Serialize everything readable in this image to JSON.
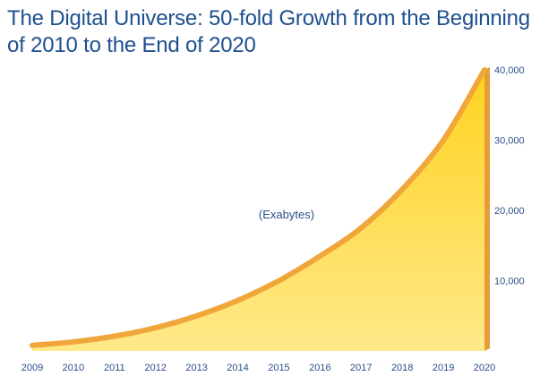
{
  "chart_data": {
    "type": "area",
    "title": "The Digital Universe: 50-fold Growth from the Beginning of 2010 to the End of 2020",
    "xlabel": "",
    "ylabel": "",
    "annotation": "(Exabytes)",
    "categories": [
      "2009",
      "2010",
      "2011",
      "2012",
      "2013",
      "2014",
      "2015",
      "2016",
      "2017",
      "2018",
      "2019",
      "2020"
    ],
    "values": [
      800,
      1300,
      2100,
      3300,
      5000,
      7200,
      10000,
      13500,
      17500,
      23000,
      30000,
      40000
    ],
    "ylim": [
      0,
      40000
    ],
    "yticks": [
      10000,
      20000,
      30000,
      40000
    ],
    "ytick_labels": [
      "10,000",
      "20,000",
      "30,000",
      "40,000"
    ],
    "y_axis_side": "right",
    "grid": false,
    "legend": "none",
    "colors": {
      "fill_top": "#ffd21f",
      "fill_bottom": "#ffe98a",
      "ridge": "#f0a63a",
      "side": "#e59d3a",
      "title": "#1e4f8f",
      "labels": "#2a4f88"
    }
  }
}
